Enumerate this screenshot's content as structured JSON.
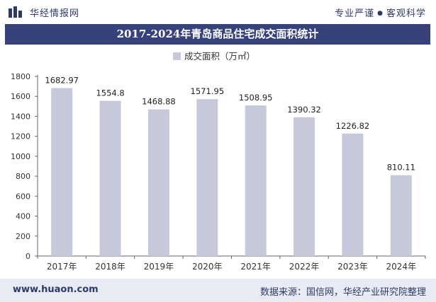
{
  "header": {
    "brand_name": "华经情报网",
    "tagline_left": "专业严谨",
    "tagline_right": "客观科学",
    "logo_icon": "bar-logo-icon"
  },
  "title": "2017-2024年青岛商品住宅成交面积统计",
  "footer": {
    "url": "www.huaon.com",
    "source": "数据来源：国信网，华经产业研究院整理"
  },
  "colors": {
    "bar": "#c5c9d9",
    "title_band": "#37427a",
    "text": "#2d3a66"
  },
  "chart_data": {
    "type": "bar",
    "title": "2017-2024年青岛商品住宅成交面积统计",
    "legend": "成交面积（万㎡）",
    "legend_position": "top-center",
    "categories": [
      "2017年",
      "2018年",
      "2019年",
      "2020年",
      "2021年",
      "2022年",
      "2023年",
      "2024年"
    ],
    "values": [
      1682.97,
      1554.8,
      1468.88,
      1571.95,
      1508.95,
      1390.32,
      1226.82,
      810.11
    ],
    "value_labels": [
      "1682.97",
      "1554.8",
      "1468.88",
      "1571.95",
      "1508.95",
      "1390.32",
      "1226.82",
      "810.11"
    ],
    "yticks": [
      0,
      200,
      400,
      600,
      800,
      1000,
      1200,
      1400,
      1600,
      1800
    ],
    "ylim": [
      0,
      1800
    ],
    "xlabel": "",
    "ylabel": "",
    "grid": false
  }
}
